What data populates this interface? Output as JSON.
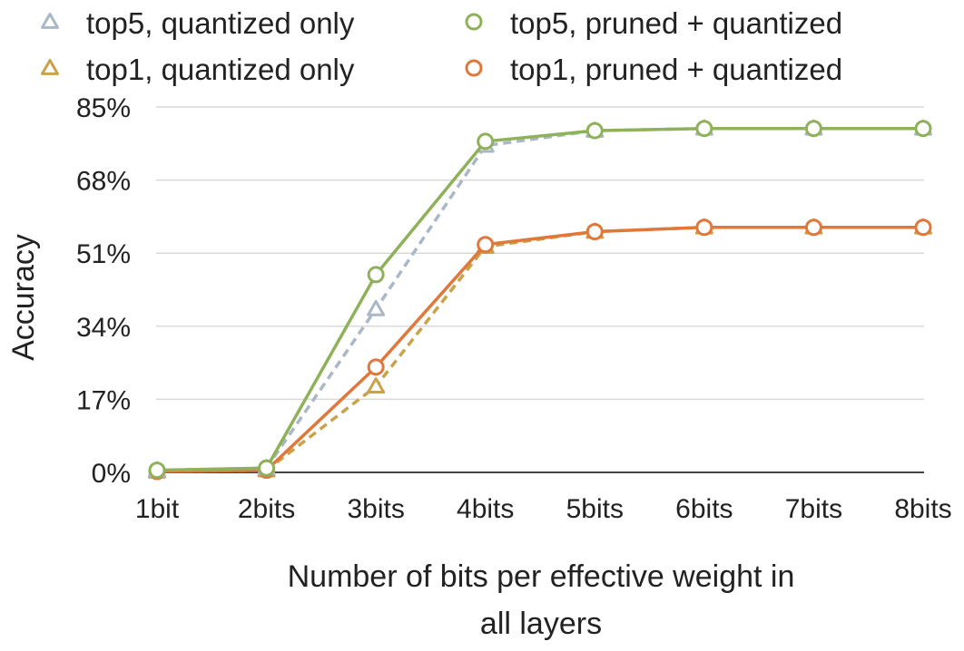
{
  "chart_data": {
    "type": "line",
    "title": "",
    "xlabel": "Number of bits per effective weight in all layers",
    "xlabel_lines": [
      "Number of bits per effective weight in",
      "all layers"
    ],
    "ylabel": "Accuracy",
    "categories": [
      "1bit",
      "2bits",
      "3bits",
      "4bits",
      "5bits",
      "6bits",
      "7bits",
      "8bits"
    ],
    "ylim": [
      0,
      85
    ],
    "yticks": [
      0,
      17,
      34,
      51,
      68,
      85
    ],
    "ytick_labels": [
      "0%",
      "17%",
      "34%",
      "51%",
      "68%",
      "85%"
    ],
    "grid": "horizontal",
    "legend_position": "top",
    "series": [
      {
        "name": "top5, quantized only",
        "values": [
          0.5,
          1.0,
          38,
          76,
          79.5,
          80,
          80,
          80
        ],
        "color": "#a9b7c6",
        "line_style": "dashed",
        "marker": "triangle"
      },
      {
        "name": "top5, pruned + quantized",
        "values": [
          0.5,
          1.0,
          46,
          77,
          79.5,
          80,
          80,
          80
        ],
        "color": "#8fb15a",
        "line_style": "solid",
        "marker": "circle"
      },
      {
        "name": "top1, quantized only",
        "values": [
          0.2,
          0.5,
          20,
          52.5,
          56,
          57,
          57,
          57
        ],
        "color": "#c9a24a",
        "line_style": "dashed",
        "marker": "triangle"
      },
      {
        "name": "top1, pruned + quantized",
        "values": [
          0.2,
          0.5,
          24.5,
          53,
          56,
          57,
          57,
          57
        ],
        "color": "#e0783c",
        "line_style": "solid",
        "marker": "circle"
      }
    ]
  }
}
